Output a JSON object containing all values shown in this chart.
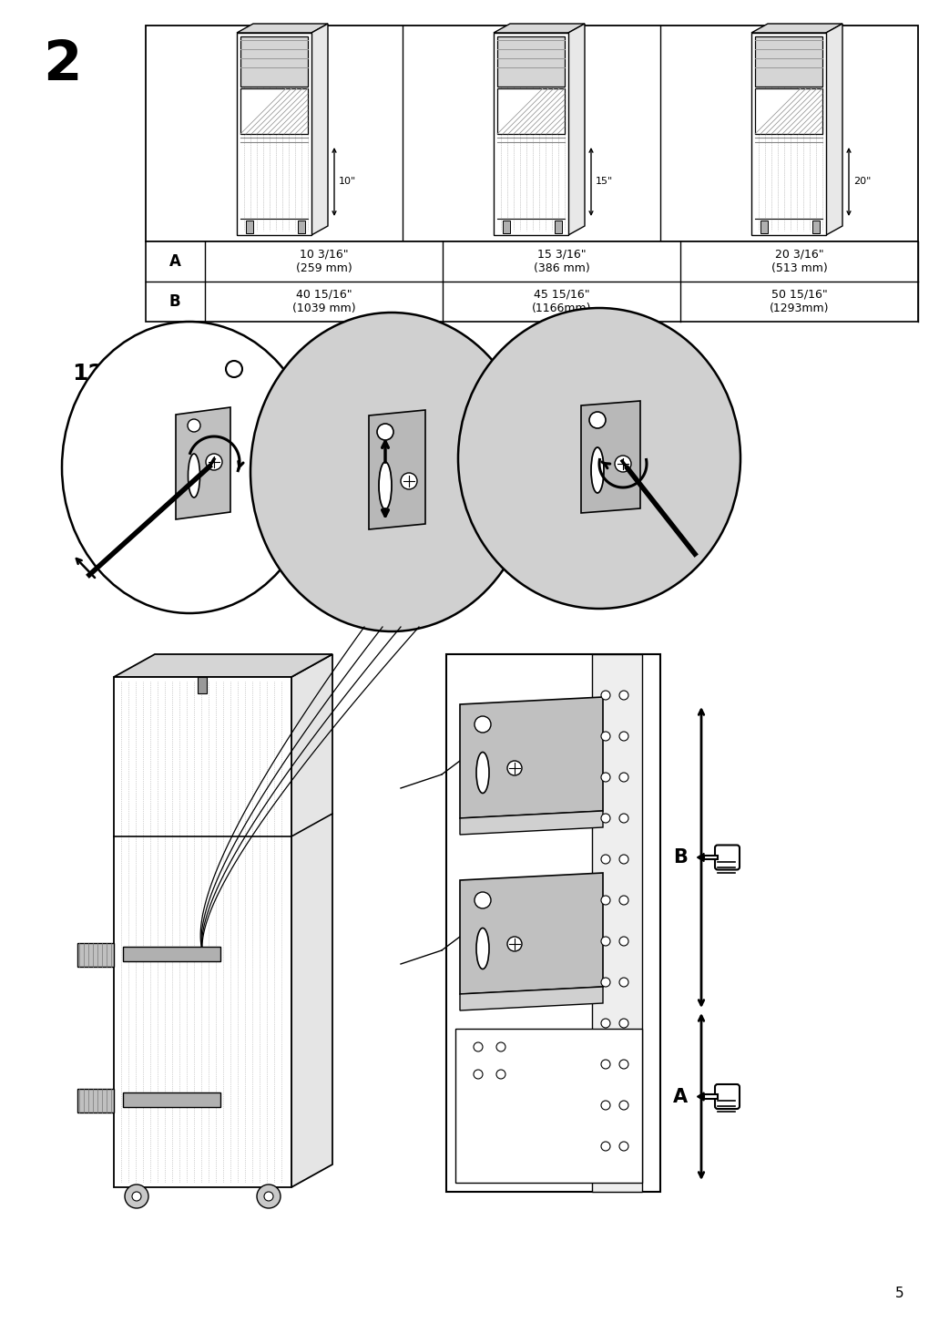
{
  "page_number": "5",
  "step_number": "2",
  "bg_color": "#ffffff",
  "line_color": "#000000",
  "gray_color": "#b0b0b0",
  "light_gray": "#d0d0d0",
  "dark_gray": "#808080",
  "table": {
    "row_labels": [
      "A",
      "B"
    ],
    "col1": [
      "10 3/16\"\n(259 mm)",
      "40 15/16\"\n(1039 mm)"
    ],
    "col2": [
      "15 3/16\"\n(386 mm)",
      "45 15/16\"\n(1166mm)"
    ],
    "col3": [
      "20 3/16\"\n(513 mm)",
      "50 15/16\"\n(1293mm)"
    ],
    "heights_label": [
      "10\"",
      "15\"",
      "20\""
    ]
  },
  "qty_label": "12x",
  "figsize": [
    10.12,
    14.32
  ],
  "dpi": 100
}
